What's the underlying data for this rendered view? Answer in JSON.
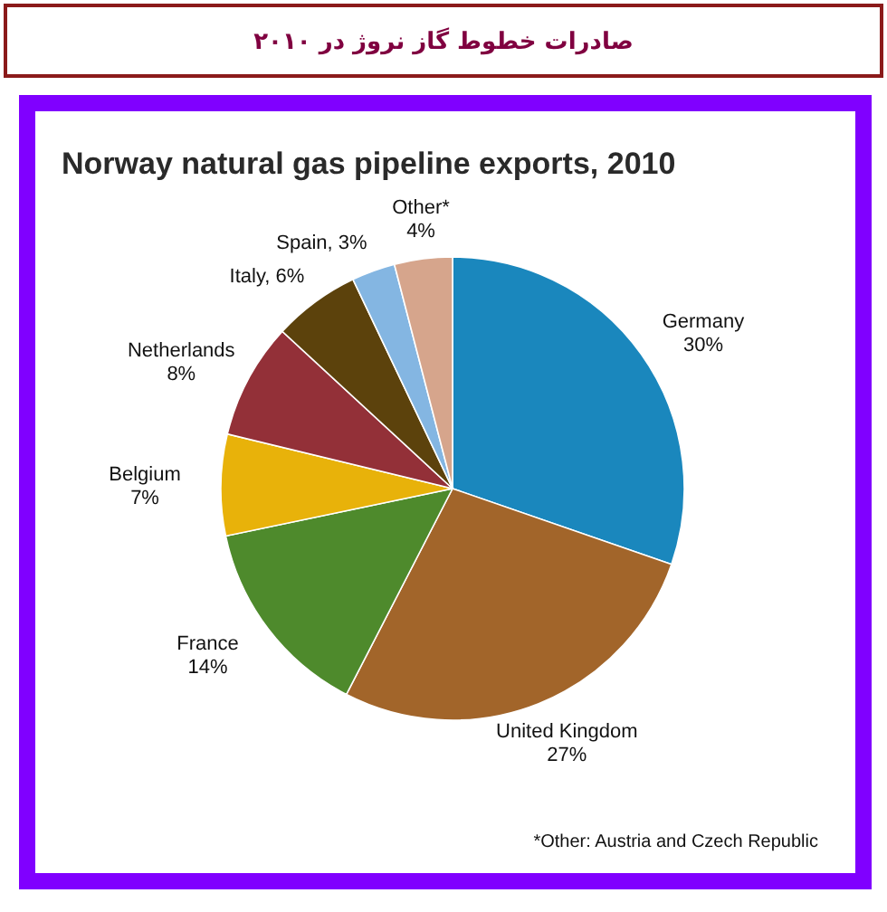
{
  "chart_data": {
    "type": "pie",
    "title": "صادرات خطوط گاز نروژ در ۲۰۱۰",
    "subtitle": "Norway natural gas pipeline exports, 2010",
    "categories": [
      "Germany",
      "United Kingdom",
      "France",
      "Belgium",
      "Netherlands",
      "Italy",
      "Spain",
      "Other*"
    ],
    "values": [
      30,
      27,
      14,
      7,
      8,
      6,
      3,
      4
    ],
    "value_labels": [
      "30%",
      "27%",
      "14%",
      "7%",
      "8%",
      "6%",
      "3%",
      "4%"
    ],
    "colors": [
      "#1a87bd",
      "#a2652a",
      "#4e8a2c",
      "#e8b20a",
      "#933038",
      "#5c420c",
      "#84b6e2",
      "#d6a58c"
    ],
    "annotations": [
      "*Other: Austria and Czech Republic"
    ]
  }
}
